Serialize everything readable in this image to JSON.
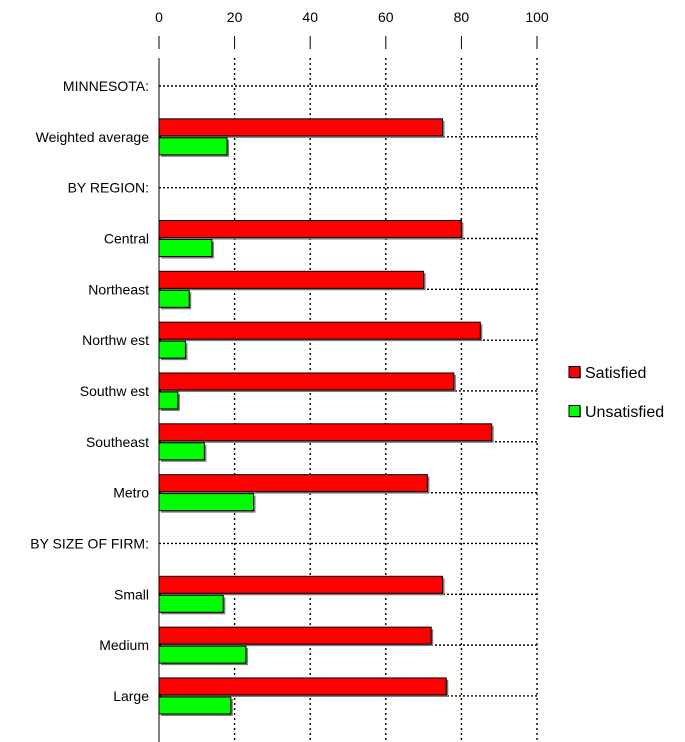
{
  "chart_data": {
    "type": "bar",
    "orientation": "horizontal",
    "xlim": [
      0,
      100
    ],
    "x_ticks": [
      0,
      20,
      40,
      60,
      80,
      100
    ],
    "x_tick_labels": [
      "0",
      "20",
      "40",
      "60",
      "80",
      "100"
    ],
    "categories": [
      "MINNESOTA:",
      "Weighted average",
      "BY REGION:",
      "Central",
      "Northeast",
      "Northw est",
      "Southw est",
      "Southeast",
      "Metro",
      "BY SIZE OF FIRM:",
      "Small",
      "Medium",
      "Large"
    ],
    "series": [
      {
        "name": "Satisfied",
        "color": "#ff0000",
        "values": [
          null,
          75,
          null,
          80,
          70,
          85,
          78,
          88,
          71,
          null,
          75,
          72,
          76
        ]
      },
      {
        "name": "Unsatisfied",
        "color": "#00ff00",
        "values": [
          null,
          18,
          null,
          14,
          8,
          7,
          5,
          12,
          25,
          null,
          17,
          23,
          19
        ]
      }
    ],
    "legend_position": "right",
    "grid": true,
    "gridline_style": "dotted",
    "axis_labels_position": "top"
  }
}
